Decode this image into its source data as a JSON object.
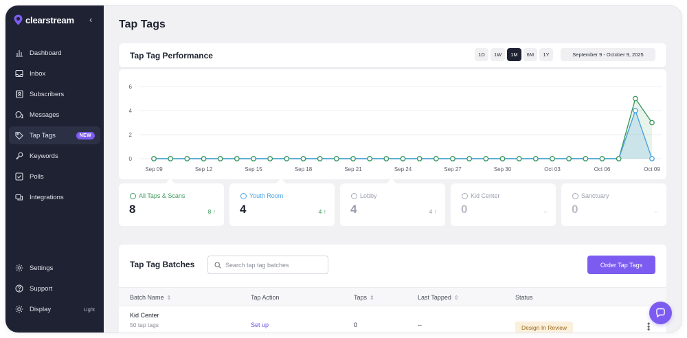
{
  "app": {
    "name": "clearstream"
  },
  "sidebar": {
    "collapse_icon": "chevron-left-icon",
    "items": [
      {
        "label": "Dashboard",
        "icon": "bar-chart-icon"
      },
      {
        "label": "Inbox",
        "icon": "inbox-icon"
      },
      {
        "label": "Subscribers",
        "icon": "contacts-icon"
      },
      {
        "label": "Messages",
        "icon": "chat-bubbles-icon"
      },
      {
        "label": "Tap Tags",
        "icon": "tag-icon",
        "badge": "NEW",
        "active": true
      },
      {
        "label": "Keywords",
        "icon": "key-icon"
      },
      {
        "label": "Polls",
        "icon": "checkbox-icon"
      },
      {
        "label": "Integrations",
        "icon": "integrations-icon"
      }
    ],
    "bottom_items": [
      {
        "label": "Settings",
        "icon": "gear-icon"
      },
      {
        "label": "Support",
        "icon": "help-circle-icon"
      },
      {
        "label": "Display",
        "icon": "sun-icon",
        "value": "Light"
      }
    ]
  },
  "page": {
    "title": "Tap Tags"
  },
  "performance": {
    "title": "Tap Tag Performance",
    "ranges": [
      "1D",
      "1W",
      "1M",
      "6M",
      "1Y"
    ],
    "active_range": "1M",
    "date_range": "September 9 - October 9, 2025"
  },
  "chart_data": {
    "type": "line",
    "x": [
      "Sep 09",
      "Sep 10",
      "Sep 11",
      "Sep 12",
      "Sep 13",
      "Sep 14",
      "Sep 15",
      "Sep 16",
      "Sep 17",
      "Sep 18",
      "Sep 19",
      "Sep 20",
      "Sep 21",
      "Sep 22",
      "Sep 23",
      "Sep 24",
      "Sep 25",
      "Sep 26",
      "Sep 27",
      "Sep 28",
      "Sep 29",
      "Sep 30",
      "Oct 01",
      "Oct 02",
      "Oct 03",
      "Oct 04",
      "Oct 05",
      "Oct 06",
      "Oct 07",
      "Oct 08",
      "Oct 09"
    ],
    "x_tick_labels": [
      "Sep 09",
      "Sep 12",
      "Sep 15",
      "Sep 18",
      "Sep 21",
      "Sep 24",
      "Sep 27",
      "Sep 30",
      "Oct 03",
      "Oct 06",
      "Oct 09"
    ],
    "y_ticks": [
      0,
      2,
      4,
      6
    ],
    "ylim": [
      0,
      6
    ],
    "grid": true,
    "series": [
      {
        "values": [
          0,
          0,
          0,
          0,
          0,
          0,
          0,
          0,
          0,
          0,
          0,
          0,
          0,
          0,
          0,
          0,
          0,
          0,
          0,
          0,
          0,
          0,
          0,
          0,
          0,
          0,
          0,
          0,
          0,
          5,
          3
        ],
        "color": "#3f9a5f"
      },
      {
        "values": [
          0,
          0,
          0,
          0,
          0,
          0,
          0,
          0,
          0,
          0,
          0,
          0,
          0,
          0,
          0,
          0,
          0,
          0,
          0,
          0,
          0,
          0,
          0,
          0,
          0,
          0,
          0,
          0,
          0,
          4,
          0
        ],
        "color": "#4aa3df"
      }
    ]
  },
  "stats": [
    {
      "label": "All Taps & Scans",
      "value": "8",
      "delta": "8 ↑",
      "color": "#3f9a5f",
      "value_color": "#1f2330",
      "delta_color": "#3f9a5f"
    },
    {
      "label": "Youth Room",
      "value": "4",
      "delta": "4 ↑",
      "color": "#4aa3df",
      "value_color": "#1f2330",
      "delta_color": "#3f9a5f"
    },
    {
      "label": "Lobby",
      "value": "4",
      "delta": "4 ↑",
      "color": "#a6a9b4",
      "value_color": "#9a9dab",
      "delta_color": "#9a9dab"
    },
    {
      "label": "Kid Center",
      "value": "0",
      "delta": "--",
      "color": "#a6a9b4",
      "value_color": "#b8bbc6",
      "delta_color": "#b8bbc6"
    },
    {
      "label": "Sanctuary",
      "value": "0",
      "delta": "--",
      "color": "#a6a9b4",
      "value_color": "#b8bbc6",
      "delta_color": "#b8bbc6"
    }
  ],
  "batches": {
    "title": "Tap Tag Batches",
    "search_placeholder": "Search tap tag batches",
    "order_button": "Order Tap Tags",
    "columns": [
      "Batch Name",
      "Tap Action",
      "Taps",
      "Last Tapped",
      "Status"
    ],
    "rows": [
      {
        "name": "Kid Center",
        "sub": "50 tap tags",
        "action": "Set up",
        "taps": "0",
        "last_tapped": "--",
        "status": "Design In Review"
      }
    ]
  },
  "chat_icon": "chat-bubble-icon"
}
